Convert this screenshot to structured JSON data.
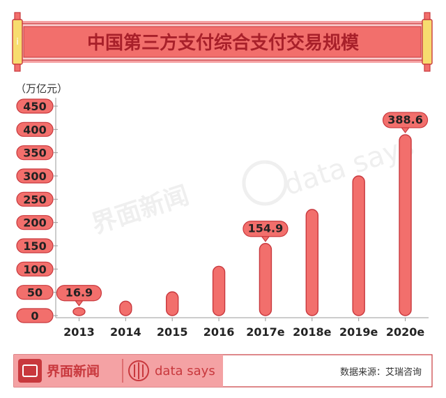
{
  "banner": {
    "title": "中国第三方支付综合支付交易规模"
  },
  "footer": {
    "brand_cn": "界面新闻",
    "brand_en": "data says",
    "source": "数据来源：艾瑞咨询"
  },
  "watermark": {
    "cn": "界面新闻",
    "en": "data says"
  },
  "colors": {
    "accent": "#f26f6c",
    "accent_dark": "#c8383d",
    "banner_pink": "#f5a3a5",
    "scroll_yellow": "#f7dc6f",
    "footer_pink": "#f4a2a4"
  },
  "chart_data": {
    "type": "bar",
    "unit_label": "（万亿元）",
    "categories": [
      "2013",
      "2014",
      "2015",
      "2016",
      "2017e",
      "2018e",
      "2019e",
      "2020e"
    ],
    "values": [
      16.9,
      31,
      51,
      106,
      154.9,
      228,
      300,
      388.6
    ],
    "data_labels": {
      "2013": "16.9",
      "2017e": "154.9",
      "2020e": "388.6"
    },
    "yticks": [
      "0",
      "50",
      "100",
      "150",
      "200",
      "250",
      "300",
      "350",
      "400",
      "450"
    ],
    "ylim": [
      0,
      450
    ],
    "xlabel": "",
    "ylabel": "",
    "grid": false
  }
}
